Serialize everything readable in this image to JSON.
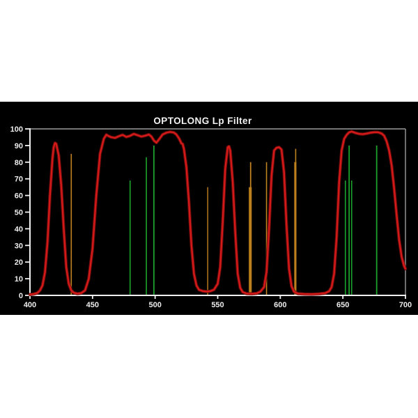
{
  "chart_data": {
    "type": "line",
    "title": "OPTOLONG Lp Filter",
    "xlabel": "",
    "ylabel": "",
    "xlim": [
      400,
      700
    ],
    "ylim": [
      0,
      100
    ],
    "grid": false,
    "legend_position": "none",
    "x_ticks": [
      400,
      450,
      500,
      550,
      600,
      650,
      700
    ],
    "y_ticks": [
      0,
      10,
      20,
      30,
      40,
      50,
      60,
      70,
      80,
      90,
      100
    ],
    "series": [
      {
        "name": "filter-transmission-curve",
        "color": "#d41919",
        "points": [
          [
            400,
            0.5
          ],
          [
            403,
            0.8
          ],
          [
            406,
            1.5
          ],
          [
            408,
            3
          ],
          [
            410,
            6
          ],
          [
            412,
            14
          ],
          [
            414,
            32
          ],
          [
            416,
            60
          ],
          [
            418,
            82
          ],
          [
            419,
            89
          ],
          [
            420,
            91.5
          ],
          [
            421,
            91
          ],
          [
            423,
            84
          ],
          [
            425,
            66
          ],
          [
            427,
            40
          ],
          [
            429,
            17
          ],
          [
            431,
            7
          ],
          [
            433,
            3
          ],
          [
            435,
            1.6
          ],
          [
            438,
            1
          ],
          [
            441,
            1.4
          ],
          [
            444,
            3
          ],
          [
            447,
            10
          ],
          [
            450,
            28
          ],
          [
            453,
            60
          ],
          [
            456,
            85
          ],
          [
            459,
            94
          ],
          [
            461,
            96.5
          ],
          [
            463,
            95.6
          ],
          [
            465,
            95
          ],
          [
            468,
            94.6
          ],
          [
            471,
            95.6
          ],
          [
            474,
            96.4
          ],
          [
            477,
            95.2
          ],
          [
            480,
            95.8
          ],
          [
            483,
            97
          ],
          [
            486,
            96.2
          ],
          [
            489,
            95.4
          ],
          [
            492,
            95.9
          ],
          [
            495,
            96.6
          ],
          [
            497,
            95.4
          ],
          [
            499,
            93
          ],
          [
            501,
            91.7
          ],
          [
            503,
            93.6
          ],
          [
            506,
            96.6
          ],
          [
            509,
            97.7
          ],
          [
            512,
            98.2
          ],
          [
            515,
            97.8
          ],
          [
            517,
            96.6
          ],
          [
            519,
            94.4
          ],
          [
            521,
            91.3
          ],
          [
            522,
            90.9
          ],
          [
            523,
            88
          ],
          [
            525,
            77
          ],
          [
            527,
            56
          ],
          [
            529,
            30
          ],
          [
            531,
            13
          ],
          [
            533,
            6
          ],
          [
            535,
            3.4
          ],
          [
            538,
            2.6
          ],
          [
            541,
            2.3
          ],
          [
            544,
            2.5
          ],
          [
            547,
            3.4
          ],
          [
            550,
            7
          ],
          [
            552,
            17
          ],
          [
            554,
            44
          ],
          [
            556,
            76
          ],
          [
            558,
            89
          ],
          [
            559,
            89.5
          ],
          [
            560,
            87
          ],
          [
            562,
            68
          ],
          [
            564,
            38
          ],
          [
            566,
            13
          ],
          [
            568,
            4.5
          ],
          [
            570,
            2
          ],
          [
            573,
            1.1
          ],
          [
            577,
            0.9
          ],
          [
            581,
            1.2
          ],
          [
            584,
            2.2
          ],
          [
            587,
            5
          ],
          [
            589,
            14
          ],
          [
            591,
            40
          ],
          [
            593,
            72
          ],
          [
            595,
            87
          ],
          [
            597,
            88.6
          ],
          [
            599,
            89
          ],
          [
            601,
            87.6
          ],
          [
            603,
            74
          ],
          [
            605,
            42
          ],
          [
            607,
            16
          ],
          [
            609,
            5.5
          ],
          [
            611,
            2.2
          ],
          [
            614,
            1.1
          ],
          [
            619,
            0.8
          ],
          [
            625,
            0.7
          ],
          [
            631,
            0.9
          ],
          [
            636,
            1.4
          ],
          [
            639,
            2.5
          ],
          [
            641,
            5
          ],
          [
            643,
            13
          ],
          [
            645,
            35
          ],
          [
            647,
            68
          ],
          [
            649,
            87
          ],
          [
            651,
            94
          ],
          [
            653,
            96.4
          ],
          [
            655,
            97.9
          ],
          [
            657,
            98.4
          ],
          [
            660,
            97.6
          ],
          [
            663,
            97
          ],
          [
            666,
            96.8
          ],
          [
            669,
            97.2
          ],
          [
            672,
            97.7
          ],
          [
            675,
            98
          ],
          [
            678,
            98
          ],
          [
            681,
            97.2
          ],
          [
            683,
            95.8
          ],
          [
            685,
            92.5
          ],
          [
            687,
            87
          ],
          [
            689,
            78
          ],
          [
            691,
            64
          ],
          [
            693,
            48
          ],
          [
            695,
            33
          ],
          [
            697,
            23
          ],
          [
            699,
            17.5
          ],
          [
            700,
            16
          ]
        ]
      }
    ],
    "emission_lines": [
      {
        "wavelength": 433,
        "value": 85,
        "color": "#c08220",
        "width": 1.6,
        "group": "orange"
      },
      {
        "wavelength": 480,
        "value": 69,
        "color": "#1ba32b",
        "width": 1.6,
        "group": "green"
      },
      {
        "wavelength": 493,
        "value": 83,
        "color": "#1ba32b",
        "width": 1.6,
        "group": "green"
      },
      {
        "wavelength": 499,
        "value": 90,
        "color": "#1ba32b",
        "width": 1.8,
        "group": "green"
      },
      {
        "wavelength": 542,
        "value": 65,
        "color": "#c08220",
        "width": 1.4,
        "group": "orange"
      },
      {
        "wavelength": 576,
        "value": 65,
        "color": "#b37a1a",
        "width": 4.2,
        "group": "orange"
      },
      {
        "wavelength": 576.3,
        "value": 80,
        "color": "#c08220",
        "width": 1.8,
        "group": "orange"
      },
      {
        "wavelength": 589,
        "value": 80,
        "color": "#c08220",
        "width": 1.6,
        "group": "orange"
      },
      {
        "wavelength": 612,
        "value": 80,
        "color": "#b37a1a",
        "width": 3.2,
        "group": "orange"
      },
      {
        "wavelength": 612.3,
        "value": 88,
        "color": "#c08220",
        "width": 1.6,
        "group": "orange"
      },
      {
        "wavelength": 652,
        "value": 69,
        "color": "#1ba32b",
        "width": 1.6,
        "group": "green"
      },
      {
        "wavelength": 655,
        "value": 90,
        "color": "#1ba32b",
        "width": 1.8,
        "group": "green"
      },
      {
        "wavelength": 657,
        "value": 69,
        "color": "#1ba32b",
        "width": 1.6,
        "group": "green"
      },
      {
        "wavelength": 677,
        "value": 90,
        "color": "#1ba32b",
        "width": 1.8,
        "group": "green"
      }
    ],
    "colors": {
      "page_background": "#ffffff",
      "chart_background": "#000000",
      "curve": "#d41919",
      "curve_glow": "#6e0c0c",
      "axis": "#f0f0f0",
      "tick_label": "#ededed",
      "frame": "#9c9c9c",
      "title": "#f2f2f2"
    }
  }
}
